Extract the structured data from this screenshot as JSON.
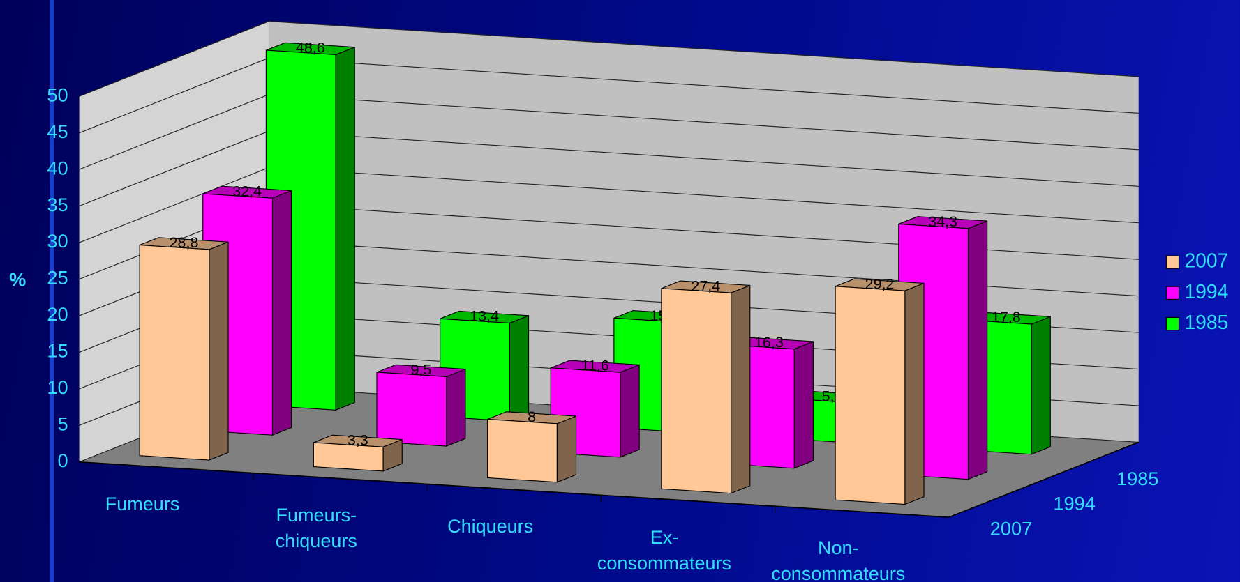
{
  "chart_data": {
    "type": "bar3d",
    "y_label": "%",
    "categories": [
      "Fumeurs",
      "Fumeurs-\nchiqueurs",
      "Chiqueurs",
      "Ex-\nconsommateurs",
      "Non-\nconsommateurs"
    ],
    "series": [
      {
        "name": "2007",
        "color": "#ffc896",
        "values": [
          28.8,
          3.3,
          8,
          27.4,
          29.2
        ],
        "value_labels": [
          "28,8",
          "3,3",
          "8",
          "27,4",
          "29,2"
        ]
      },
      {
        "name": "1994",
        "color": "#ff00ff",
        "values": [
          32.4,
          9.5,
          11.6,
          16.3,
          34.3
        ],
        "value_labels": [
          "32,4",
          "9,5",
          "11,6",
          "16,3",
          "34,3"
        ]
      },
      {
        "name": "1985",
        "color": "#00ff00",
        "values": [
          48.6,
          13.4,
          15,
          5.5,
          17.8
        ],
        "value_labels": [
          "48,6",
          "13,4",
          "15",
          "5,5",
          "17,8"
        ]
      }
    ],
    "ylim": [
      0,
      50
    ],
    "yticks": [
      0,
      5,
      10,
      15,
      20,
      25,
      30,
      35,
      40,
      45,
      50
    ],
    "grid": true,
    "legend": "right"
  }
}
